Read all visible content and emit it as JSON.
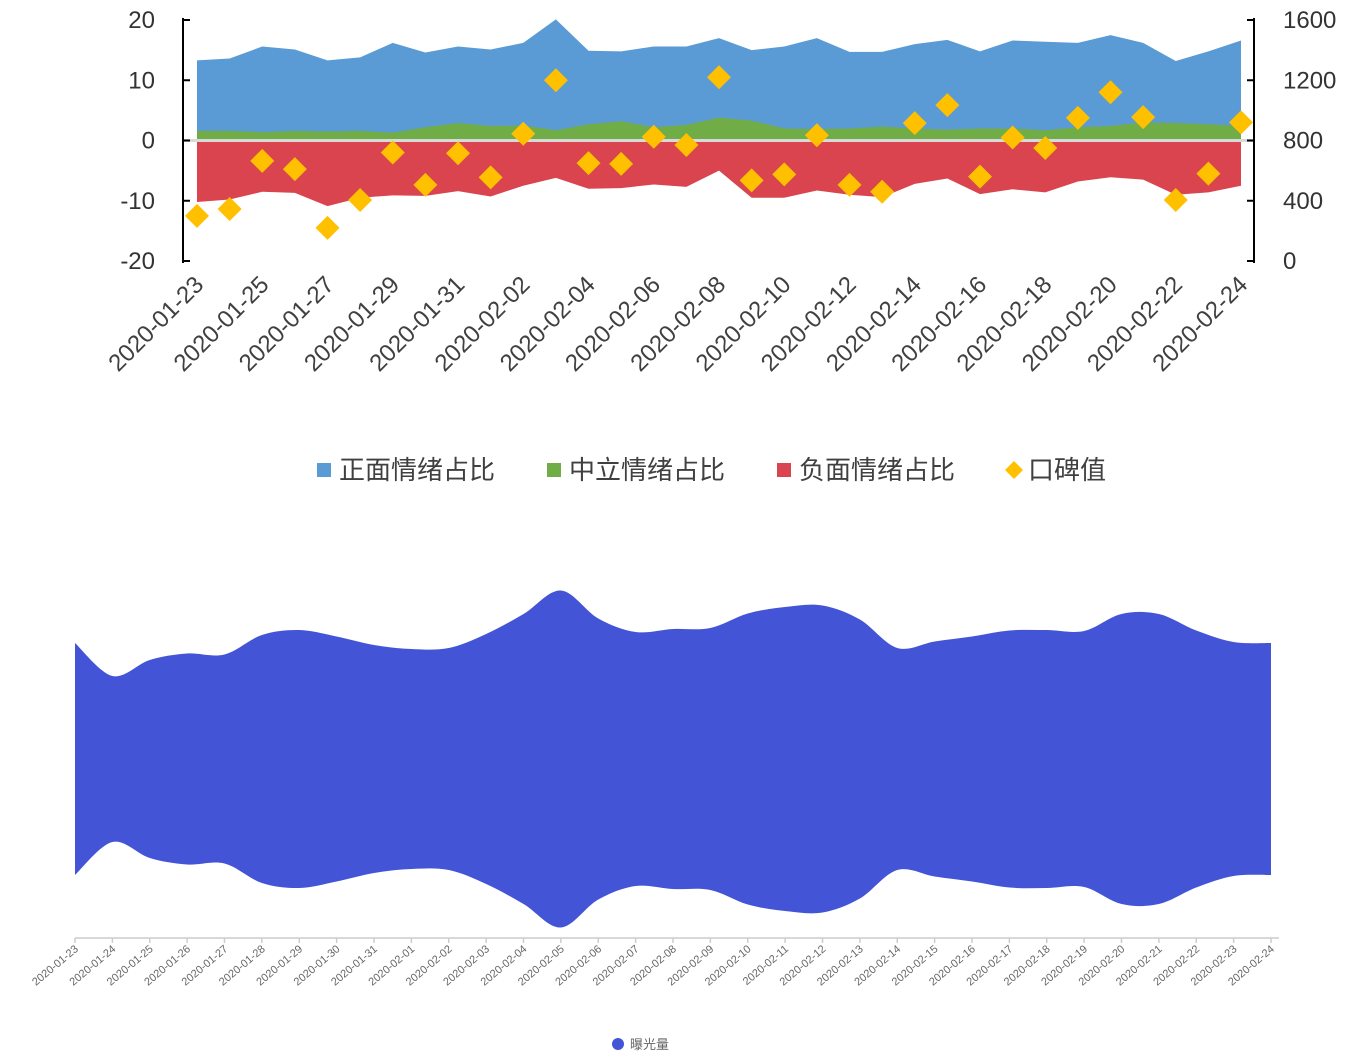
{
  "chart_data": [
    {
      "type": "area",
      "title": "",
      "xlabel": "",
      "ylabel": "",
      "x": [
        "2020-01-23",
        "2020-01-24",
        "2020-01-25",
        "2020-01-26",
        "2020-01-27",
        "2020-01-28",
        "2020-01-29",
        "2020-01-30",
        "2020-01-31",
        "2020-02-01",
        "2020-02-02",
        "2020-02-03",
        "2020-02-04",
        "2020-02-05",
        "2020-02-06",
        "2020-02-07",
        "2020-02-08",
        "2020-02-09",
        "2020-02-10",
        "2020-02-11",
        "2020-02-12",
        "2020-02-13",
        "2020-02-14",
        "2020-02-15",
        "2020-02-16",
        "2020-02-17",
        "2020-02-18",
        "2020-02-19",
        "2020-02-20",
        "2020-02-21",
        "2020-02-22",
        "2020-02-23",
        "2020-02-24"
      ],
      "x_tick_labels": [
        "2020-01-23",
        "2020-01-25",
        "2020-01-27",
        "2020-01-29",
        "2020-01-31",
        "2020-02-02",
        "2020-02-04",
        "2020-02-06",
        "2020-02-08",
        "2020-02-10",
        "2020-02-12",
        "2020-02-14",
        "2020-02-16",
        "2020-02-18",
        "2020-02-20",
        "2020-02-22",
        "2020-02-24"
      ],
      "ylim": [
        -20,
        20
      ],
      "y_ticks": [
        20,
        10,
        0,
        -10,
        -20
      ],
      "y2lim": [
        0,
        1600
      ],
      "y2_ticks": [
        1600,
        1200,
        800,
        400,
        0
      ],
      "series": [
        {
          "name": "正面情绪占比",
          "kind": "area",
          "axis": "left",
          "color": "#5b9bd5",
          "values": [
            13.3,
            13.6,
            15.6,
            15.1,
            13.3,
            13.8,
            16.2,
            14.6,
            15.6,
            15.1,
            16.2,
            20.1,
            14.9,
            14.8,
            15.6,
            15.6,
            17.0,
            15.0,
            15.6,
            17.0,
            14.7,
            14.7,
            16.0,
            16.7,
            14.8,
            16.6,
            16.4,
            16.2,
            17.5,
            16.2,
            13.2,
            14.8,
            16.6
          ]
        },
        {
          "name": "中立情绪占比",
          "kind": "area",
          "axis": "left",
          "color": "#70ad47",
          "values": [
            1.6,
            1.6,
            1.4,
            1.6,
            1.5,
            1.6,
            1.3,
            2.2,
            2.9,
            2.4,
            2.5,
            1.7,
            2.7,
            3.2,
            2.2,
            2.6,
            3.8,
            3.3,
            2.0,
            1.9,
            2.0,
            2.3,
            2.0,
            1.8,
            2.0,
            2.0,
            1.7,
            2.2,
            2.4,
            3.0,
            2.9,
            2.7,
            2.4
          ]
        },
        {
          "name": "负面情绪占比",
          "kind": "area",
          "axis": "left",
          "color": "#d9444f",
          "values": [
            -10.2,
            -9.8,
            -8.5,
            -8.7,
            -10.9,
            -9.5,
            -9.1,
            -9.2,
            -8.4,
            -9.3,
            -7.5,
            -6.2,
            -8.0,
            -7.9,
            -7.3,
            -7.7,
            -5.0,
            -9.5,
            -9.5,
            -8.3,
            -9.0,
            -9.4,
            -7.2,
            -6.3,
            -8.9,
            -8.1,
            -8.6,
            -6.8,
            -6.1,
            -6.5,
            -9.0,
            -8.6,
            -7.5
          ]
        },
        {
          "name": "口碑值",
          "kind": "scatter",
          "axis": "right",
          "color": "#ffc000",
          "values": [
            300,
            345,
            665,
            610,
            220,
            405,
            720,
            505,
            715,
            555,
            845,
            1200,
            650,
            645,
            825,
            770,
            1220,
            535,
            575,
            835,
            505,
            460,
            915,
            1035,
            560,
            820,
            750,
            950,
            1120,
            955,
            405,
            580,
            920
          ]
        }
      ],
      "legend_position": "bottom"
    },
    {
      "type": "area",
      "title": "",
      "xlabel": "",
      "ylabel": "",
      "x": [
        "2020-01-23",
        "2020-01-24",
        "2020-01-25",
        "2020-01-26",
        "2020-01-27",
        "2020-01-28",
        "2020-01-29",
        "2020-01-30",
        "2020-01-31",
        "2020-02-01",
        "2020-02-02",
        "2020-02-03",
        "2020-02-04",
        "2020-02-05",
        "2020-02-06",
        "2020-02-07",
        "2020-02-08",
        "2020-02-09",
        "2020-02-10",
        "2020-02-11",
        "2020-02-12",
        "2020-02-13",
        "2020-02-14",
        "2020-02-15",
        "2020-02-16",
        "2020-02-17",
        "2020-02-18",
        "2020-02-19",
        "2020-02-20",
        "2020-02-21",
        "2020-02-22",
        "2020-02-23",
        "2020-02-24"
      ],
      "series": [
        {
          "name": "曝光量",
          "color": "#4355d6",
          "values": [
            232,
            166,
            198,
            211,
            209,
            248,
            258,
            245,
            228,
            220,
            222,
            250,
            290,
            337,
            281,
            254,
            260,
            262,
            291,
            304,
            307,
            279,
            222,
            235,
            245,
            257,
            258,
            256,
            290,
            290,
            257,
            234,
            232
          ]
        }
      ],
      "axis_visible": false,
      "stream": true,
      "legend_position": "bottom"
    }
  ]
}
